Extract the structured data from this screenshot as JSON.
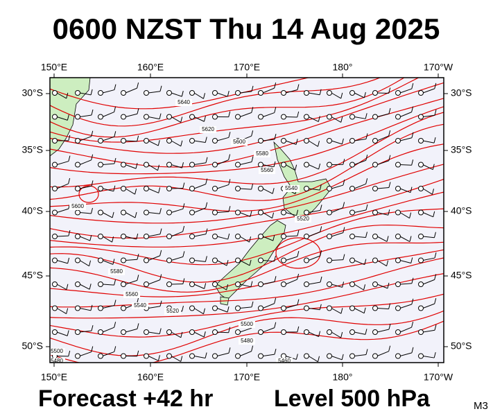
{
  "title": "0600 NZST Thu 14 Aug 2025",
  "longitude_labels_top": [
    "150°E",
    "160°E",
    "170°E",
    "180°",
    "170°W"
  ],
  "longitude_labels_bottom": [
    "150°E",
    "160°E",
    "170°E",
    "180°",
    "170°W"
  ],
  "latitude_labels_left": [
    "30°S",
    "35°S",
    "40°S",
    "45°S",
    "50°S"
  ],
  "latitude_labels_right": [
    "30°S",
    "35°S",
    "40°S",
    "45°S",
    "50°S"
  ],
  "contour_labels": [
    "5640",
    "5620",
    "5600",
    "5580",
    "5560",
    "5540",
    "5520",
    "5600",
    "5580",
    "5560",
    "5540",
    "5520",
    "5500",
    "5480",
    "5460",
    "5500",
    "5480"
  ],
  "footer": {
    "forecast": "Forecast +42 hr",
    "level": "Level 500 hPa",
    "code": "M3"
  }
}
